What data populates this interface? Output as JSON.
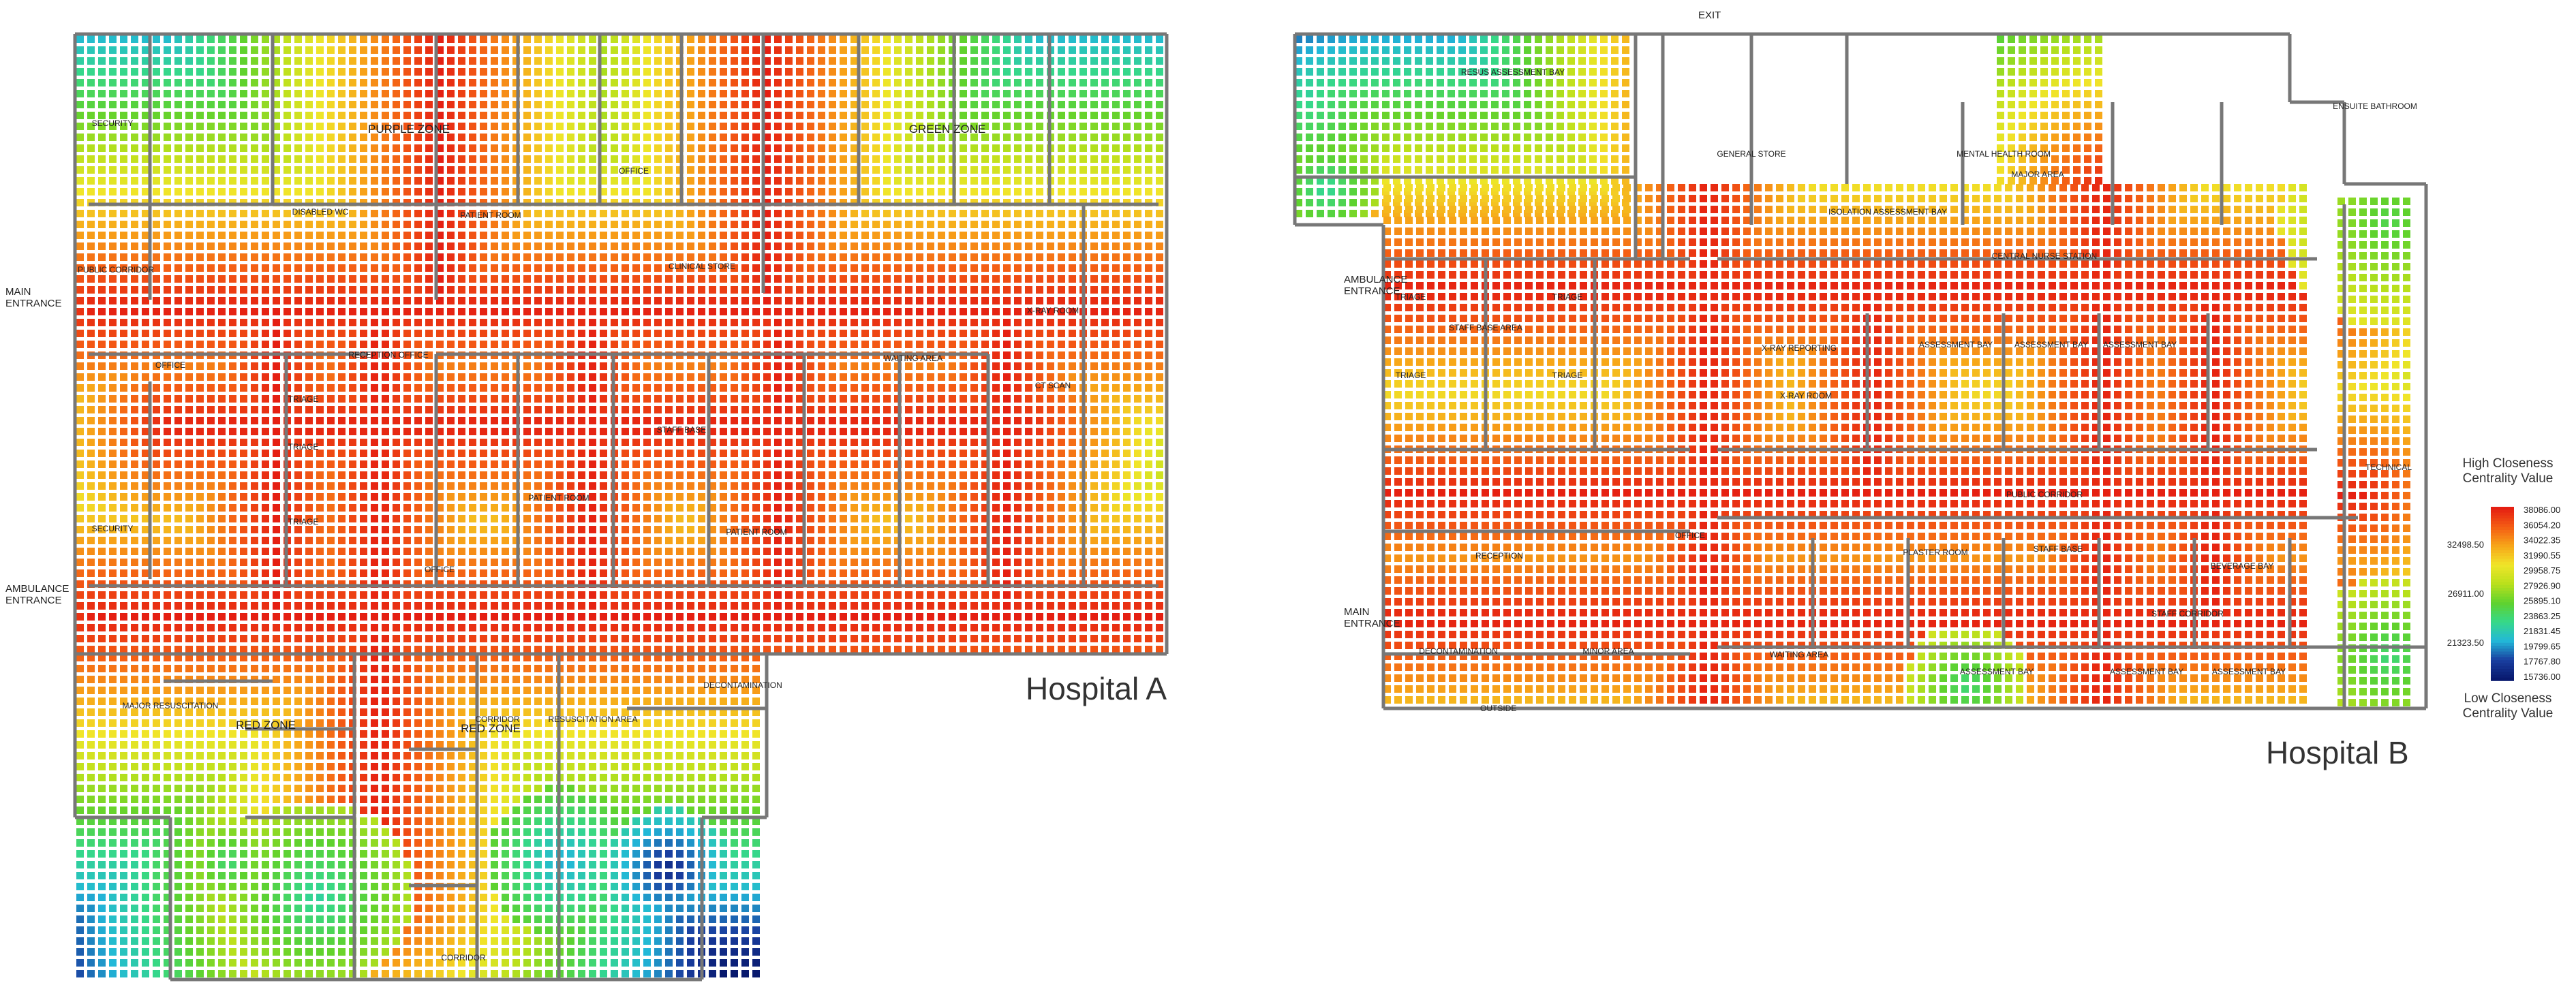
{
  "colors": {
    "scale": [
      "#08196e",
      "#1a3fa0",
      "#22b8d8",
      "#36d889",
      "#5fd22e",
      "#b9e01c",
      "#f0e529",
      "#f7a619",
      "#f45d14",
      "#e51f12"
    ],
    "wall": "#777777",
    "background": "#ffffff"
  },
  "hospital_a": {
    "title": "Hospital A",
    "external": {
      "main_entrance": "MAIN\nENTRANCE",
      "ambulance_entrance": "AMBULANCE\nENTRANCE"
    },
    "zones": {
      "green_zone": "GREEN ZONE",
      "purple_zone": "PURPLE ZONE",
      "red_zone_left": "RED ZONE",
      "red_zone_mid": "RED ZONE"
    },
    "rooms": {
      "security_top": "SECURITY",
      "security_left": "SECURITY",
      "public_corridor": "PUBLIC CORRIDOR",
      "office_1": "OFFICE",
      "office_2": "OFFICE",
      "office_3": "OFFICE",
      "triage_1": "TRIAGE",
      "triage_2": "TRIAGE",
      "triage_3": "TRIAGE",
      "staff_base": "STAFF BASE",
      "patient_room": "PATIENT ROOM",
      "patient_room_2": "PATIENT ROOM",
      "patient_room_3": "PATIENT ROOM",
      "x_ray_room": "X-RAY ROOM",
      "ct_scan": "CT SCAN",
      "waiting_area": "WAITING AREA",
      "clinical_store": "CLINICAL STORE",
      "resuscitation": "RESUSCITATION AREA",
      "major_resus": "MAJOR RESUSCITATION",
      "disabled_wc": "DISABLED WC",
      "corridor_a": "CORRIDOR",
      "corridor_b": "CORRIDOR",
      "reception": "RECEPTION OFFICE",
      "decontamination": "DECONTAMINATION"
    }
  },
  "hospital_b": {
    "title": "Hospital B",
    "external": {
      "exit": "EXIT",
      "ambulance_entrance": "AMBULANCE\nENTRANCE",
      "main_entrance": "MAIN\nENTRANCE",
      "outside": "OUTSIDE"
    },
    "rooms": {
      "resus_bay": "RESUS ASSESSMENT BAY",
      "staff_base_area": "STAFF BASE AREA",
      "triage_1": "TRIAGE",
      "triage_2": "TRIAGE",
      "triage_3": "TRIAGE",
      "triage_4": "TRIAGE",
      "major_area": "MAJOR AREA",
      "central_nurse_station": "CENTRAL NURSE STATION",
      "public_corridor": "PUBLIC CORRIDOR",
      "reception": "RECEPTION",
      "assessment_bay_1": "ASSESSMENT BAY",
      "assessment_bay_2": "ASSESSMENT BAY",
      "assessment_bay_3": "ASSESSMENT BAY",
      "assessment_bay_4": "ASSESSMENT BAY",
      "assessment_bay_5": "ASSESSMENT BAY",
      "assessment_bay_6": "ASSESSMENT BAY",
      "x_ray_room": "X-RAY ROOM",
      "x_ray_reporting": "X-RAY REPORTING",
      "isolation": "ISOLATION ASSESSMENT BAY",
      "ensuite_bathroom": "ENSUITE BATHROOM",
      "office": "OFFICE",
      "plaster_room": "PLASTER ROOM",
      "waiting_area": "WAITING AREA",
      "staff_base": "STAFF BASE",
      "technical": "TECHNICAL",
      "beverage_bay": "BEVERAGE BAY",
      "mental_health": "MENTAL HEALTH ROOM",
      "general_store": "GENERAL STORE",
      "decontamination": "DECONTAMINATION",
      "minor_area": "MINOR AREA",
      "staff_corridor": "STAFF CORRIDOR"
    }
  },
  "legend": {
    "title_top": "High Closeness\nCentrality Value",
    "title_bottom": "Low Closeness\nCentrality Value",
    "ticks": [
      "38086.00",
      "36054.20",
      "34022.35",
      "31990.55",
      "29958.75",
      "27926.90",
      "25895.10",
      "23863.25",
      "21831.45",
      "19799.65",
      "17767.80",
      "15736.00"
    ],
    "mid_labels": [
      "32498.50",
      "26911.00",
      "21323.50"
    ]
  }
}
